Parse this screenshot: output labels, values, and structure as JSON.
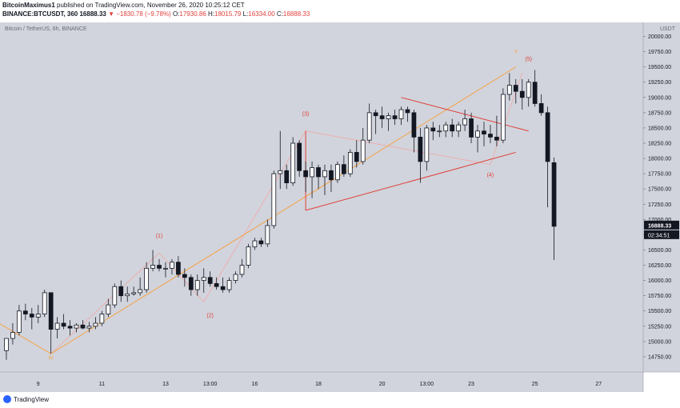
{
  "header": {
    "publisher": "BitcoinMaximus1",
    "published_text": "published on TradingView.com, November 26, 2020 10:25:12 CET",
    "symbol": "BINANCE:BTCUSDT, 360",
    "last": "16888.33",
    "change": "▼ −1830.78 (−9.78%)",
    "o_label": "O:",
    "o_value": "17930.86",
    "h_label": "H:",
    "h_value": "18015.79",
    "l_label": "L:",
    "l_value": "16334.00",
    "c_label": "C:",
    "c_value": "16888.33"
  },
  "footer": {
    "logo_text": "TradingView"
  },
  "colors": {
    "background": "#d1d4dc",
    "up_fill": "#ffffff",
    "down_fill": "#131722",
    "orange": "#f7a248",
    "red": "#e0403a",
    "pink": "#f2a7a7",
    "price_tag": "#131722"
  },
  "chart_data": {
    "type": "candlestick",
    "title": "Bitcoin / TetherUS, 6h, BINANCE",
    "currency": "USDT",
    "y_ticks": [
      14750,
      15000,
      15250,
      15500,
      15750,
      16000,
      16250,
      16500,
      16750,
      17000,
      17250,
      17500,
      17750,
      18000,
      18250,
      18500,
      18750,
      19000,
      19250,
      19500,
      19750,
      20000
    ],
    "ylim": [
      14500,
      20230
    ],
    "x_ticks": [
      "9",
      "11",
      "13",
      "13:00",
      "16",
      "18",
      "20",
      "13:00",
      "23",
      "25",
      "27"
    ],
    "x_tick_bars": [
      5,
      15,
      25,
      32,
      39,
      49,
      59,
      66,
      73,
      83,
      93
    ],
    "x_bar_range": [
      -1,
      100
    ],
    "last_price_label": "16888.33",
    "countdown_label": "02:34:51",
    "candles": [
      {
        "o": 14850,
        "h": 15050,
        "l": 14700,
        "c": 15050
      },
      {
        "o": 15050,
        "h": 15300,
        "l": 14950,
        "c": 15150
      },
      {
        "o": 15150,
        "h": 15600,
        "l": 15100,
        "c": 15500
      },
      {
        "o": 15500,
        "h": 15620,
        "l": 15350,
        "c": 15450
      },
      {
        "o": 15450,
        "h": 15550,
        "l": 15200,
        "c": 15400
      },
      {
        "o": 15400,
        "h": 15600,
        "l": 15300,
        "c": 15450
      },
      {
        "o": 15450,
        "h": 15850,
        "l": 15400,
        "c": 15800
      },
      {
        "o": 15800,
        "h": 15800,
        "l": 14800,
        "c": 15200
      },
      {
        "o": 15200,
        "h": 15400,
        "l": 15050,
        "c": 15300
      },
      {
        "o": 15300,
        "h": 15450,
        "l": 15200,
        "c": 15250
      },
      {
        "o": 15250,
        "h": 15350,
        "l": 15100,
        "c": 15220
      },
      {
        "o": 15220,
        "h": 15300,
        "l": 15150,
        "c": 15270
      },
      {
        "o": 15270,
        "h": 15350,
        "l": 15200,
        "c": 15220
      },
      {
        "o": 15220,
        "h": 15320,
        "l": 15150,
        "c": 15250
      },
      {
        "o": 15250,
        "h": 15400,
        "l": 15200,
        "c": 15300
      },
      {
        "o": 15300,
        "h": 15500,
        "l": 15250,
        "c": 15450
      },
      {
        "o": 15450,
        "h": 15700,
        "l": 15400,
        "c": 15600
      },
      {
        "o": 15600,
        "h": 15950,
        "l": 15550,
        "c": 15900
      },
      {
        "o": 15900,
        "h": 16000,
        "l": 15650,
        "c": 15750
      },
      {
        "o": 15750,
        "h": 15900,
        "l": 15650,
        "c": 15780
      },
      {
        "o": 15780,
        "h": 15900,
        "l": 15750,
        "c": 15800
      },
      {
        "o": 15800,
        "h": 16050,
        "l": 15750,
        "c": 15850
      },
      {
        "o": 15850,
        "h": 16300,
        "l": 15800,
        "c": 16200
      },
      {
        "o": 16200,
        "h": 16500,
        "l": 16150,
        "c": 16250
      },
      {
        "o": 16250,
        "h": 16350,
        "l": 16150,
        "c": 16200
      },
      {
        "o": 16200,
        "h": 16300,
        "l": 16050,
        "c": 16200
      },
      {
        "o": 16200,
        "h": 16350,
        "l": 16100,
        "c": 16300
      },
      {
        "o": 16300,
        "h": 16400,
        "l": 16050,
        "c": 16100
      },
      {
        "o": 16100,
        "h": 16200,
        "l": 15900,
        "c": 16050
      },
      {
        "o": 16050,
        "h": 16100,
        "l": 15750,
        "c": 15850
      },
      {
        "o": 15850,
        "h": 16100,
        "l": 15750,
        "c": 16000
      },
      {
        "o": 16000,
        "h": 16200,
        "l": 15800,
        "c": 16050
      },
      {
        "o": 16050,
        "h": 16150,
        "l": 15900,
        "c": 15950
      },
      {
        "o": 15950,
        "h": 16050,
        "l": 15850,
        "c": 15900
      },
      {
        "o": 15900,
        "h": 16050,
        "l": 15800,
        "c": 15850
      },
      {
        "o": 15850,
        "h": 16050,
        "l": 15800,
        "c": 16000
      },
      {
        "o": 16000,
        "h": 16150,
        "l": 15950,
        "c": 16100
      },
      {
        "o": 16100,
        "h": 16350,
        "l": 16050,
        "c": 16250
      },
      {
        "o": 16250,
        "h": 16600,
        "l": 16200,
        "c": 16550
      },
      {
        "o": 16550,
        "h": 16700,
        "l": 16500,
        "c": 16650
      },
      {
        "o": 16650,
        "h": 16700,
        "l": 16550,
        "c": 16600
      },
      {
        "o": 16600,
        "h": 17000,
        "l": 16550,
        "c": 16900
      },
      {
        "o": 16900,
        "h": 17800,
        "l": 16850,
        "c": 17750
      },
      {
        "o": 17750,
        "h": 18450,
        "l": 17500,
        "c": 17800
      },
      {
        "o": 17800,
        "h": 17900,
        "l": 17500,
        "c": 17600
      },
      {
        "o": 17600,
        "h": 18350,
        "l": 17550,
        "c": 18250
      },
      {
        "o": 18250,
        "h": 18300,
        "l": 17700,
        "c": 17800
      },
      {
        "o": 17800,
        "h": 17950,
        "l": 17450,
        "c": 17700
      },
      {
        "o": 17700,
        "h": 17950,
        "l": 17350,
        "c": 17850
      },
      {
        "o": 17850,
        "h": 17900,
        "l": 17500,
        "c": 17700
      },
      {
        "o": 17700,
        "h": 17900,
        "l": 17400,
        "c": 17800
      },
      {
        "o": 17800,
        "h": 17900,
        "l": 17450,
        "c": 17650
      },
      {
        "o": 17650,
        "h": 17950,
        "l": 17600,
        "c": 17900
      },
      {
        "o": 17900,
        "h": 18050,
        "l": 17700,
        "c": 17750
      },
      {
        "o": 17750,
        "h": 18150,
        "l": 17700,
        "c": 18100
      },
      {
        "o": 18100,
        "h": 18300,
        "l": 17850,
        "c": 17950
      },
      {
        "o": 17950,
        "h": 18500,
        "l": 17900,
        "c": 18300
      },
      {
        "o": 18300,
        "h": 18900,
        "l": 18250,
        "c": 18750
      },
      {
        "o": 18750,
        "h": 18800,
        "l": 18400,
        "c": 18700
      },
      {
        "o": 18700,
        "h": 18850,
        "l": 18500,
        "c": 18650
      },
      {
        "o": 18650,
        "h": 18750,
        "l": 18450,
        "c": 18700
      },
      {
        "o": 18700,
        "h": 18800,
        "l": 18550,
        "c": 18650
      },
      {
        "o": 18650,
        "h": 18850,
        "l": 18550,
        "c": 18800
      },
      {
        "o": 18800,
        "h": 18850,
        "l": 18600,
        "c": 18750
      },
      {
        "o": 18750,
        "h": 18800,
        "l": 18100,
        "c": 18350
      },
      {
        "o": 18350,
        "h": 18500,
        "l": 17600,
        "c": 17950
      },
      {
        "o": 17950,
        "h": 18550,
        "l": 17800,
        "c": 18500
      },
      {
        "o": 18500,
        "h": 18600,
        "l": 18300,
        "c": 18450
      },
      {
        "o": 18450,
        "h": 18550,
        "l": 18350,
        "c": 18450
      },
      {
        "o": 18450,
        "h": 18600,
        "l": 18350,
        "c": 18550
      },
      {
        "o": 18550,
        "h": 18650,
        "l": 18350,
        "c": 18450
      },
      {
        "o": 18450,
        "h": 18600,
        "l": 18350,
        "c": 18550
      },
      {
        "o": 18550,
        "h": 18800,
        "l": 18450,
        "c": 18650
      },
      {
        "o": 18650,
        "h": 18750,
        "l": 18250,
        "c": 18350
      },
      {
        "o": 18350,
        "h": 18550,
        "l": 18100,
        "c": 18450
      },
      {
        "o": 18450,
        "h": 18600,
        "l": 18200,
        "c": 18400
      },
      {
        "o": 18400,
        "h": 18550,
        "l": 18250,
        "c": 18350
      },
      {
        "o": 18350,
        "h": 18700,
        "l": 18200,
        "c": 18300
      },
      {
        "o": 18300,
        "h": 19150,
        "l": 18250,
        "c": 19050
      },
      {
        "o": 19050,
        "h": 19400,
        "l": 18950,
        "c": 19200
      },
      {
        "o": 19200,
        "h": 19300,
        "l": 18900,
        "c": 19100
      },
      {
        "o": 19100,
        "h": 19300,
        "l": 18800,
        "c": 19000
      },
      {
        "o": 19000,
        "h": 19300,
        "l": 18850,
        "c": 19250
      },
      {
        "o": 19250,
        "h": 19450,
        "l": 18850,
        "c": 18900
      },
      {
        "o": 18900,
        "h": 19050,
        "l": 18700,
        "c": 18750
      },
      {
        "o": 18750,
        "h": 18850,
        "l": 17200,
        "c": 17950
      },
      {
        "o": 17930.86,
        "h": 18015.79,
        "l": 16334,
        "c": 16888.33
      }
    ],
    "candle_start_bar": 0,
    "trendline_orange": [
      {
        "bar": -2,
        "y": 15350
      },
      {
        "bar": 7,
        "y": 14800
      },
      {
        "bar": 80,
        "y": 19500
      }
    ],
    "orange_labels": [
      {
        "text": "Y",
        "bar": 80,
        "y": 19720
      },
      {
        "text": "IV",
        "bar": 7,
        "y": 14700
      }
    ],
    "red_channel_upper": [
      {
        "bar": 62,
        "y": 19000
      },
      {
        "bar": 82,
        "y": 18450
      }
    ],
    "red_channel_lower": [
      {
        "bar": 47,
        "y": 17150
      },
      {
        "bar": 80,
        "y": 18100
      }
    ],
    "red_channel_left": [
      {
        "bar": 47,
        "y": 18450
      },
      {
        "bar": 47,
        "y": 17150
      }
    ],
    "pink_wave": [
      {
        "bar": 7,
        "y": 14800
      },
      {
        "bar": 24,
        "y": 16450
      },
      {
        "bar": 31,
        "y": 15650
      },
      {
        "bar": 47,
        "y": 18450
      },
      {
        "bar": 76,
        "y": 17900
      },
      {
        "bar": 81,
        "y": 19400
      }
    ],
    "wave_labels": [
      {
        "text": "(1)",
        "bar": 24,
        "y": 16700
      },
      {
        "text": "(2)",
        "bar": 32,
        "y": 15400
      },
      {
        "text": "(3)",
        "bar": 47,
        "y": 18700
      },
      {
        "text": "(4)",
        "bar": 76,
        "y": 17700
      },
      {
        "text": "(5)",
        "bar": 82,
        "y": 19600
      }
    ]
  }
}
